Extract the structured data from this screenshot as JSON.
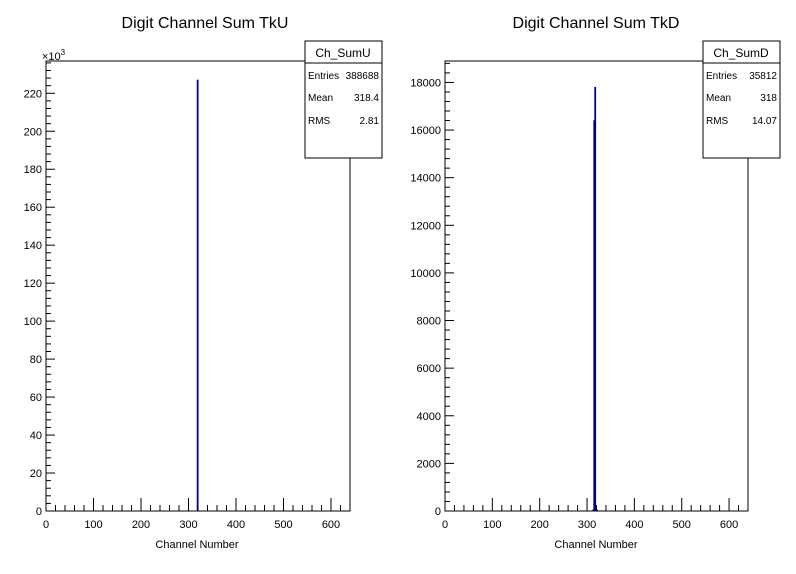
{
  "chart_data": [
    {
      "type": "bar",
      "title": "Digit Channel Sum TkU",
      "xlabel": "Channel Number",
      "ylabel": "",
      "xlim": [
        0,
        640
      ],
      "ylim": [
        0,
        237
      ],
      "y_multiplier_label": "×10",
      "y_multiplier_exp": "3",
      "x_ticks": [
        "0",
        "100",
        "200",
        "300",
        "400",
        "500",
        "600"
      ],
      "x_tick_values": [
        0,
        100,
        200,
        300,
        400,
        500,
        600
      ],
      "y_ticks": [
        "0",
        "20",
        "40",
        "60",
        "80",
        "100",
        "120",
        "140",
        "160",
        "180",
        "200",
        "220"
      ],
      "y_tick_values": [
        0,
        20,
        40,
        60,
        80,
        100,
        120,
        140,
        160,
        180,
        200,
        220
      ],
      "bins": [
        {
          "x0": 318,
          "x1": 320,
          "y": 227
        }
      ],
      "stats": {
        "name": "Ch_SumU",
        "rows": [
          {
            "label": "Entries",
            "value": "388688"
          },
          {
            "label": "Mean",
            "value": "318.4"
          },
          {
            "label": "RMS",
            "value": "2.81"
          }
        ]
      },
      "colors": {
        "bar": "#000080"
      }
    },
    {
      "type": "bar",
      "title": "Digit Channel Sum TkD",
      "xlabel": "Channel Number",
      "ylabel": "",
      "xlim": [
        0,
        640
      ],
      "ylim": [
        0,
        18900
      ],
      "y_multiplier_label": "",
      "y_multiplier_exp": "",
      "x_ticks": [
        "0",
        "100",
        "200",
        "300",
        "400",
        "500",
        "600"
      ],
      "x_tick_values": [
        0,
        100,
        200,
        300,
        400,
        500,
        600
      ],
      "y_ticks": [
        "0",
        "2000",
        "4000",
        "6000",
        "8000",
        "10000",
        "12000",
        "14000",
        "16000",
        "18000"
      ],
      "y_tick_values": [
        0,
        2000,
        4000,
        6000,
        8000,
        10000,
        12000,
        14000,
        16000,
        18000
      ],
      "bins": [
        {
          "x0": 312,
          "x1": 314,
          "y": 50
        },
        {
          "x0": 314,
          "x1": 316,
          "y": 16400
        },
        {
          "x0": 316,
          "x1": 318,
          "y": 17800
        },
        {
          "x0": 318,
          "x1": 320,
          "y": 120
        },
        {
          "x0": 320,
          "x1": 322,
          "y": 40
        }
      ],
      "stats": {
        "name": "Ch_SumD",
        "rows": [
          {
            "label": "Entries",
            "value": "35812"
          },
          {
            "label": "Mean",
            "value": "318"
          },
          {
            "label": "RMS",
            "value": "14.07"
          }
        ]
      },
      "colors": {
        "bar": "#000080"
      }
    }
  ]
}
